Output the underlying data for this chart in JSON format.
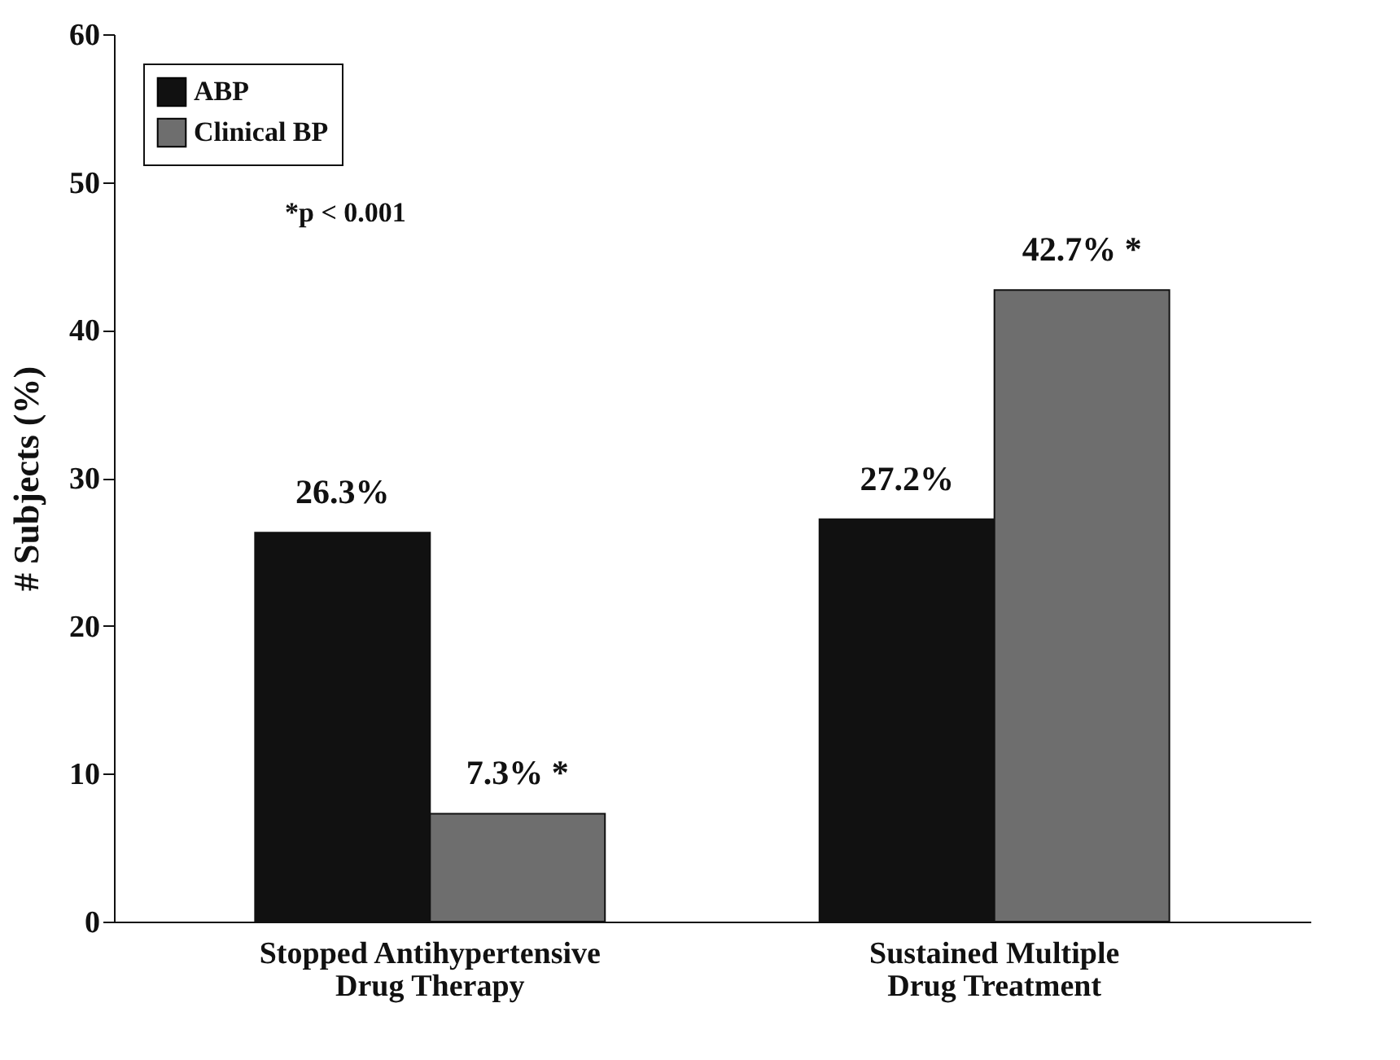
{
  "chart_data": {
    "type": "bar",
    "ylabel": "# Subjects (%)",
    "categories": [
      "Stopped Antihypertensive Drug Therapy",
      "Sustained Multiple Drug Treatment"
    ],
    "series": [
      {
        "name": "ABP",
        "color": "#111111",
        "values": [
          26.3,
          27.2
        ],
        "value_labels": [
          "26.3%",
          "27.2%"
        ]
      },
      {
        "name": "Clinical BP",
        "color": "#6e6e6e",
        "values": [
          7.3,
          42.7
        ],
        "value_labels": [
          "7.3% *",
          "42.7% *"
        ]
      }
    ],
    "annotations": [
      "*p < 0.001"
    ],
    "ylim": [
      0,
      60
    ],
    "yticks": [
      0,
      10,
      20,
      30,
      40,
      50,
      60
    ],
    "grid": false,
    "legend": "top left"
  }
}
